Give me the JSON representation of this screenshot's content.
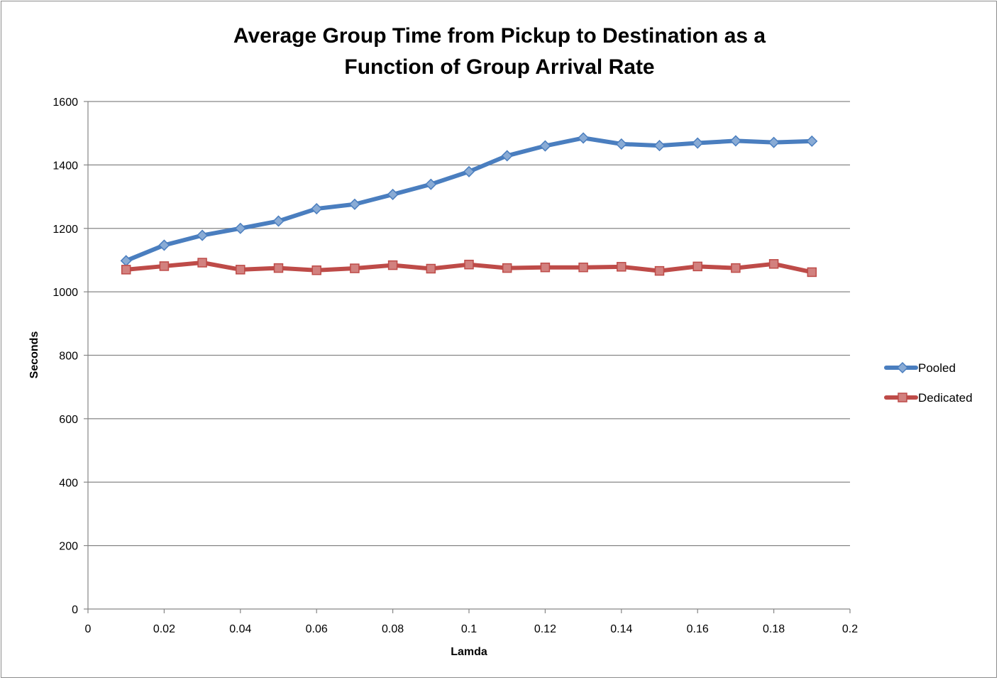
{
  "chart_data": {
    "type": "line",
    "title_lines": [
      "Average Group Time from Pickup to Destination as a",
      "Function of Group Arrival Rate"
    ],
    "xlabel": "Lamda",
    "ylabel": "Seconds",
    "xlim": [
      0,
      0.2
    ],
    "ylim": [
      0,
      1600
    ],
    "x_ticks": [
      "0",
      "0.02",
      "0.04",
      "0.06",
      "0.08",
      "0.1",
      "0.12",
      "0.14",
      "0.16",
      "0.18",
      "0.2"
    ],
    "y_ticks": [
      "0",
      "200",
      "400",
      "600",
      "800",
      "1000",
      "1200",
      "1400",
      "1600"
    ],
    "grid": "horizontal",
    "legend_position": "right",
    "x": [
      0.01,
      0.02,
      0.03,
      0.04,
      0.05,
      0.06,
      0.07,
      0.08,
      0.09,
      0.1,
      0.11,
      0.12,
      0.13,
      0.14,
      0.15,
      0.16,
      0.17,
      0.18,
      0.19
    ],
    "series": [
      {
        "name": "Pooled",
        "color": "#4a7ebf",
        "marker": "diamond",
        "values": [
          1098,
          1147,
          1178,
          1200,
          1223,
          1262,
          1276,
          1307,
          1339,
          1379,
          1429,
          1460,
          1485,
          1466,
          1461,
          1469,
          1476,
          1471,
          1475
        ]
      },
      {
        "name": "Dedicated",
        "color": "#be4b48",
        "marker": "square",
        "values": [
          1070,
          1081,
          1092,
          1070,
          1075,
          1068,
          1074,
          1084,
          1073,
          1086,
          1075,
          1077,
          1077,
          1079,
          1066,
          1080,
          1075,
          1088,
          1062
        ]
      }
    ]
  }
}
